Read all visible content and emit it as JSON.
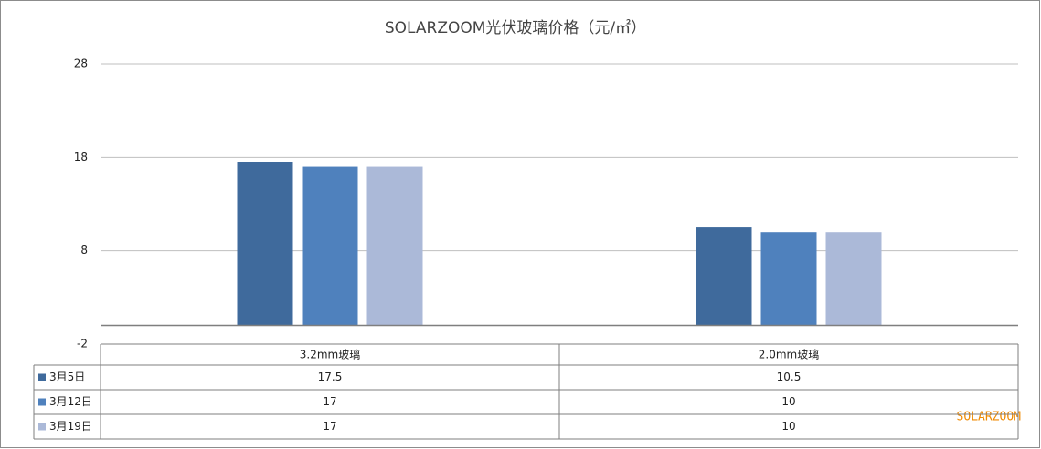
{
  "chart_data": {
    "type": "bar",
    "title": "SOLARZOOM光伏玻璃价格（元/㎡）",
    "categories": [
      "3.2mm玻璃",
      "2.0mm玻璃"
    ],
    "series": [
      {
        "name": "3月5日",
        "color": "#3f6a9c",
        "values": [
          17.5,
          10.5
        ]
      },
      {
        "name": "3月12日",
        "color": "#4f81bd",
        "values": [
          17,
          10
        ]
      },
      {
        "name": "3月19日",
        "color": "#abb9d8",
        "values": [
          17,
          10
        ]
      }
    ],
    "ylim": [
      -2,
      28
    ],
    "yticks": [
      -2,
      8,
      18,
      28
    ],
    "grid": true,
    "data_table": true,
    "watermark": "SOLARZOOM"
  }
}
